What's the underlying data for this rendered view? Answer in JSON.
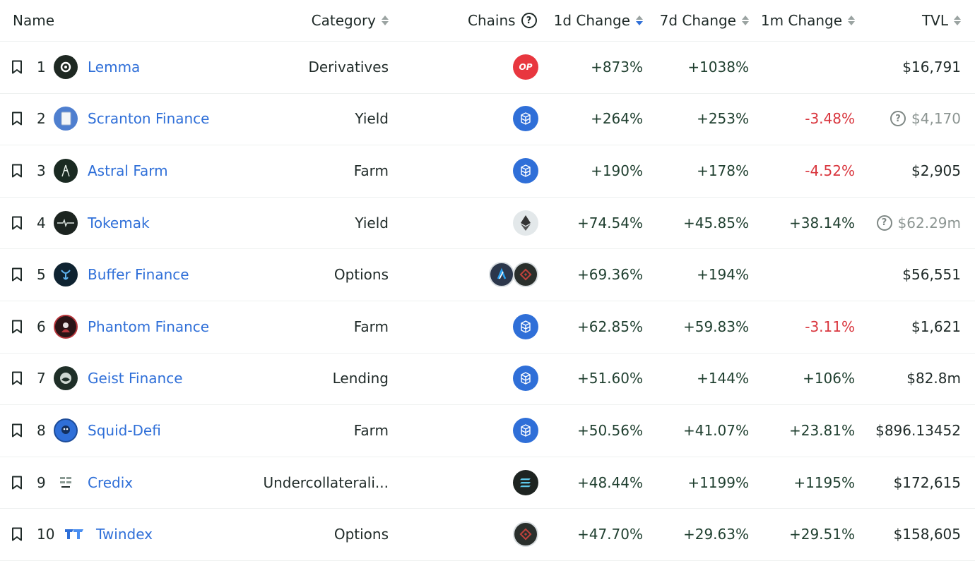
{
  "header": {
    "name": "Name",
    "category": "Category",
    "chains": "Chains",
    "chains_help": "?",
    "d1": "1d Change",
    "d7": "7d Change",
    "m1": "1m Change",
    "tvl": "TVL"
  },
  "colors": {
    "link": "#2f6fd8",
    "positive": "#1f3f2f",
    "negative": "#d9363e",
    "muted": "#8c9592"
  },
  "rows": [
    {
      "rank": "1",
      "name": "Lemma",
      "category": "Derivatives",
      "chains": [
        "optimism-icon"
      ],
      "d1": "+873%",
      "d7": "+1038%",
      "m1": "",
      "tvl": "$16,791",
      "tvl_flag": false
    },
    {
      "rank": "2",
      "name": "Scranton Finance",
      "category": "Yield",
      "chains": [
        "fantom-icon"
      ],
      "d1": "+264%",
      "d7": "+253%",
      "m1": "-3.48%",
      "tvl": "$4,170",
      "tvl_flag": true
    },
    {
      "rank": "3",
      "name": "Astral Farm",
      "category": "Farm",
      "chains": [
        "fantom-icon"
      ],
      "d1": "+190%",
      "d7": "+178%",
      "m1": "-4.52%",
      "tvl": "$2,905",
      "tvl_flag": false
    },
    {
      "rank": "4",
      "name": "Tokemak",
      "category": "Yield",
      "chains": [
        "ethereum-icon"
      ],
      "d1": "+74.54%",
      "d7": "+45.85%",
      "m1": "+38.14%",
      "tvl": "$62.29m",
      "tvl_flag": true
    },
    {
      "rank": "5",
      "name": "Buffer Finance",
      "category": "Options",
      "chains": [
        "arbitrum-icon",
        "bnb-chain-icon"
      ],
      "d1": "+69.36%",
      "d7": "+194%",
      "m1": "",
      "tvl": "$56,551",
      "tvl_flag": false
    },
    {
      "rank": "6",
      "name": "Phantom Finance",
      "category": "Farm",
      "chains": [
        "fantom-icon"
      ],
      "d1": "+62.85%",
      "d7": "+59.83%",
      "m1": "-3.11%",
      "tvl": "$1,621",
      "tvl_flag": false
    },
    {
      "rank": "7",
      "name": "Geist Finance",
      "category": "Lending",
      "chains": [
        "fantom-icon"
      ],
      "d1": "+51.60%",
      "d7": "+144%",
      "m1": "+106%",
      "tvl": "$82.8m",
      "tvl_flag": false
    },
    {
      "rank": "8",
      "name": "Squid-Defi",
      "category": "Farm",
      "chains": [
        "fantom-icon"
      ],
      "d1": "+50.56%",
      "d7": "+41.07%",
      "m1": "+23.81%",
      "tvl": "$896.13452",
      "tvl_flag": false
    },
    {
      "rank": "9",
      "name": "Credix",
      "category": "Undercollaterali...",
      "chains": [
        "solana-icon"
      ],
      "d1": "+48.44%",
      "d7": "+1199%",
      "m1": "+1195%",
      "tvl": "$172,615",
      "tvl_flag": false
    },
    {
      "rank": "10",
      "name": "Twindex",
      "category": "Options",
      "chains": [
        "bnb-chain-icon"
      ],
      "d1": "+47.70%",
      "d7": "+29.63%",
      "m1": "+29.51%",
      "tvl": "$158,605",
      "tvl_flag": false
    }
  ]
}
